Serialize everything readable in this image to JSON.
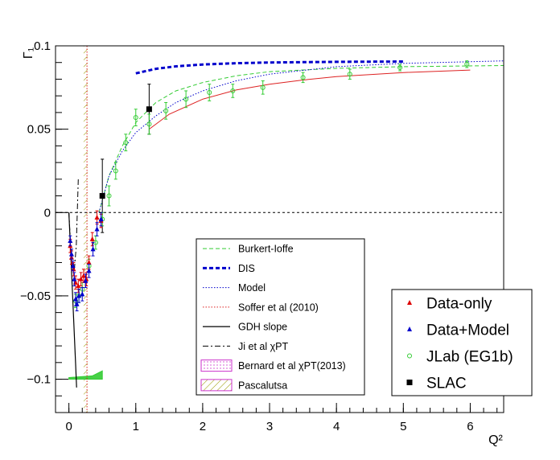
{
  "chart_data": {
    "type": "scatter",
    "title": "",
    "xlabel": "Q²",
    "ylabel": "Γ₁",
    "xlim": [
      -0.2,
      6.5
    ],
    "ylim": [
      -0.12,
      0.1
    ],
    "x_ticks": [
      0,
      1,
      2,
      3,
      4,
      5,
      6
    ],
    "y_ticks": [
      -0.1,
      -0.05,
      0,
      0.05,
      0.1
    ],
    "x_tick_labels": [
      "0",
      "1",
      "2",
      "3",
      "4",
      "5",
      "6"
    ],
    "y_tick_labels": [
      "−0.1",
      "−0.05",
      "0",
      "0.05",
      "0.1"
    ],
    "grid": false,
    "zero_line": true,
    "legend_lines": {
      "placement": "bottom-center",
      "entries": [
        {
          "label": "Burkert-Ioffe",
          "color": "#33cc33",
          "style": "dashed"
        },
        {
          "label": "DIS",
          "color": "#0000cc",
          "style": "bold-dashed"
        },
        {
          "label": "Model",
          "color": "#0000cc",
          "style": "dotted"
        },
        {
          "label": "Soffer et al (2010)",
          "color": "#dd2222",
          "style": "dotted"
        },
        {
          "label": "GDH slope",
          "color": "#000000",
          "style": "solid"
        },
        {
          "label": "Ji et al χPT",
          "color": "#000000",
          "style": "dash-dot"
        },
        {
          "label": "Bernard et al χPT(2013)",
          "color": "#cc33cc",
          "style": "dotted-box"
        },
        {
          "label": "Pascalutsa",
          "color": "#999900",
          "style": "hatched-box"
        }
      ]
    },
    "legend_markers": {
      "placement": "bottom-right",
      "entries": [
        {
          "label": "Data-only",
          "color": "#dd0000",
          "marker": "triangle"
        },
        {
          "label": "Data+Model",
          "color": "#0000cc",
          "marker": "triangle"
        },
        {
          "label": "JLab (EG1b)",
          "color": "#33cc33",
          "marker": "open-circle"
        },
        {
          "label": "SLAC",
          "color": "#000000",
          "marker": "square"
        }
      ]
    },
    "series": [
      {
        "name": "SLAC",
        "color": "#000000",
        "points": [
          {
            "x": 0.5,
            "y": 0.01,
            "err": 0.022
          },
          {
            "x": 1.2,
            "y": 0.062,
            "err": 0.015
          }
        ]
      },
      {
        "name": "JLab (EG1b)",
        "color": "#33cc33",
        "points": [
          {
            "x": 0.1,
            "y": -0.053,
            "err": 0.004
          },
          {
            "x": 0.15,
            "y": -0.05,
            "err": 0.004
          },
          {
            "x": 0.2,
            "y": -0.046,
            "err": 0.004
          },
          {
            "x": 0.3,
            "y": -0.032,
            "err": 0.004
          },
          {
            "x": 0.4,
            "y": -0.018,
            "err": 0.004
          },
          {
            "x": 0.5,
            "y": -0.004,
            "err": 0.004
          },
          {
            "x": 0.6,
            "y": 0.01,
            "err": 0.006
          },
          {
            "x": 0.7,
            "y": 0.025,
            "err": 0.005
          },
          {
            "x": 0.85,
            "y": 0.042,
            "err": 0.005
          },
          {
            "x": 1.0,
            "y": 0.057,
            "err": 0.005
          },
          {
            "x": 1.2,
            "y": 0.053,
            "err": 0.006
          },
          {
            "x": 1.45,
            "y": 0.061,
            "err": 0.005
          },
          {
            "x": 1.75,
            "y": 0.068,
            "err": 0.005
          },
          {
            "x": 2.1,
            "y": 0.072,
            "err": 0.005
          },
          {
            "x": 2.45,
            "y": 0.073,
            "err": 0.004
          },
          {
            "x": 2.9,
            "y": 0.075,
            "err": 0.004
          },
          {
            "x": 3.5,
            "y": 0.081,
            "err": 0.003
          },
          {
            "x": 4.2,
            "y": 0.083,
            "err": 0.003
          },
          {
            "x": 4.95,
            "y": 0.087,
            "err": 0.002
          },
          {
            "x": 5.95,
            "y": 0.089,
            "err": 0.002
          }
        ]
      },
      {
        "name": "Data-only",
        "color": "#dd0000",
        "points": [
          {
            "x": 0.02,
            "y": -0.02,
            "err": 0.004
          },
          {
            "x": 0.04,
            "y": -0.027,
            "err": 0.004
          },
          {
            "x": 0.07,
            "y": -0.034,
            "err": 0.004
          },
          {
            "x": 0.1,
            "y": -0.042,
            "err": 0.004
          },
          {
            "x": 0.14,
            "y": -0.044,
            "err": 0.004
          },
          {
            "x": 0.18,
            "y": -0.04,
            "err": 0.004
          },
          {
            "x": 0.22,
            "y": -0.038,
            "err": 0.004
          },
          {
            "x": 0.26,
            "y": -0.04,
            "err": 0.004
          },
          {
            "x": 0.3,
            "y": -0.03,
            "err": 0.004
          },
          {
            "x": 0.35,
            "y": -0.016,
            "err": 0.004
          },
          {
            "x": 0.42,
            "y": -0.003,
            "err": 0.004
          },
          {
            "x": 0.48,
            "y": -0.005,
            "err": 0.004
          }
        ]
      },
      {
        "name": "Data+Model",
        "color": "#0000cc",
        "points": [
          {
            "x": 0.02,
            "y": -0.017,
            "err": 0.003
          },
          {
            "x": 0.04,
            "y": -0.025,
            "err": 0.003
          },
          {
            "x": 0.06,
            "y": -0.032,
            "err": 0.003
          },
          {
            "x": 0.08,
            "y": -0.04,
            "err": 0.004
          },
          {
            "x": 0.1,
            "y": -0.052,
            "err": 0.004
          },
          {
            "x": 0.12,
            "y": -0.055,
            "err": 0.004
          },
          {
            "x": 0.15,
            "y": -0.05,
            "err": 0.004
          },
          {
            "x": 0.2,
            "y": -0.049,
            "err": 0.004
          },
          {
            "x": 0.25,
            "y": -0.041,
            "err": 0.004
          },
          {
            "x": 0.3,
            "y": -0.035,
            "err": 0.004
          },
          {
            "x": 0.36,
            "y": -0.022,
            "err": 0.004
          },
          {
            "x": 0.42,
            "y": -0.01,
            "err": 0.004
          },
          {
            "x": 0.48,
            "y": -0.004,
            "err": 0.004
          }
        ]
      }
    ],
    "curves": [
      {
        "name": "DIS",
        "color": "#0000cc",
        "style": "bold-dashed",
        "points": [
          [
            1,
            0.0835
          ],
          [
            1.3,
            0.0862
          ],
          [
            1.6,
            0.0877
          ],
          [
            2,
            0.0888
          ],
          [
            2.5,
            0.0896
          ],
          [
            3,
            0.09
          ],
          [
            4,
            0.0904
          ],
          [
            5,
            0.0906
          ]
        ]
      },
      {
        "name": "Burkert-Ioffe",
        "color": "#33cc33",
        "style": "dashed",
        "points": [
          [
            0.45,
            0.0
          ],
          [
            0.6,
            0.022
          ],
          [
            0.8,
            0.04
          ],
          [
            1,
            0.054
          ],
          [
            1.3,
            0.066
          ],
          [
            1.6,
            0.073
          ],
          [
            2,
            0.078
          ],
          [
            2.5,
            0.082
          ],
          [
            3,
            0.0845
          ],
          [
            4,
            0.0865
          ],
          [
            5,
            0.0875
          ],
          [
            6.5,
            0.0882
          ]
        ]
      },
      {
        "name": "Model",
        "color": "#0000cc",
        "style": "dotted",
        "points": [
          [
            0.45,
            0.0
          ],
          [
            0.6,
            0.022
          ],
          [
            0.8,
            0.037
          ],
          [
            1,
            0.048
          ],
          [
            1.3,
            0.058
          ],
          [
            1.6,
            0.066
          ],
          [
            2,
            0.073
          ],
          [
            2.5,
            0.079
          ],
          [
            3,
            0.083
          ],
          [
            4,
            0.0875
          ],
          [
            5,
            0.0895
          ],
          [
            6.5,
            0.091
          ]
        ]
      },
      {
        "name": "Soffer et al (2010)",
        "color": "#dd2222",
        "style": "solid-thin",
        "points": [
          [
            1.2,
            0.05
          ],
          [
            1.5,
            0.059
          ],
          [
            2,
            0.068
          ],
          [
            2.5,
            0.0735
          ],
          [
            3,
            0.077
          ],
          [
            3.5,
            0.0795
          ],
          [
            4,
            0.0815
          ],
          [
            5,
            0.084
          ],
          [
            6,
            0.0855
          ]
        ]
      },
      {
        "name": "Soffer et al (2010) low-Q²",
        "color": "#dd2222",
        "style": "dotted",
        "points": [
          [
            0.27,
            0.1
          ],
          [
            0.27,
            -0.12
          ]
        ]
      },
      {
        "name": "GDH slope",
        "color": "#000000",
        "style": "solid",
        "points": [
          [
            0,
            0
          ],
          [
            0.05,
            -0.045
          ],
          [
            0.1,
            -0.09
          ],
          [
            0.115,
            -0.105
          ]
        ]
      },
      {
        "name": "Ji et al χPT",
        "color": "#000000",
        "style": "dash-dot",
        "points": [
          [
            0,
            0
          ],
          [
            0.04,
            -0.03
          ],
          [
            0.08,
            -0.035
          ],
          [
            0.11,
            -0.02
          ],
          [
            0.14,
            0.02
          ]
        ]
      }
    ],
    "bands": [
      {
        "name": "Pascalutsa",
        "color": "#999900",
        "style": "hatched",
        "polygon": [
          [
            0.22,
            0.1
          ],
          [
            0.28,
            0.1
          ],
          [
            0.28,
            -0.12
          ],
          [
            0.22,
            -0.12
          ]
        ]
      },
      {
        "name": "Bernard et al χPT(2013)",
        "color": "#33cc33",
        "style": "filled",
        "polygon": [
          [
            0,
            -0.099
          ],
          [
            0.35,
            -0.098
          ],
          [
            0.5,
            -0.095
          ],
          [
            0.5,
            -0.1
          ],
          [
            0,
            -0.1
          ]
        ]
      }
    ]
  }
}
